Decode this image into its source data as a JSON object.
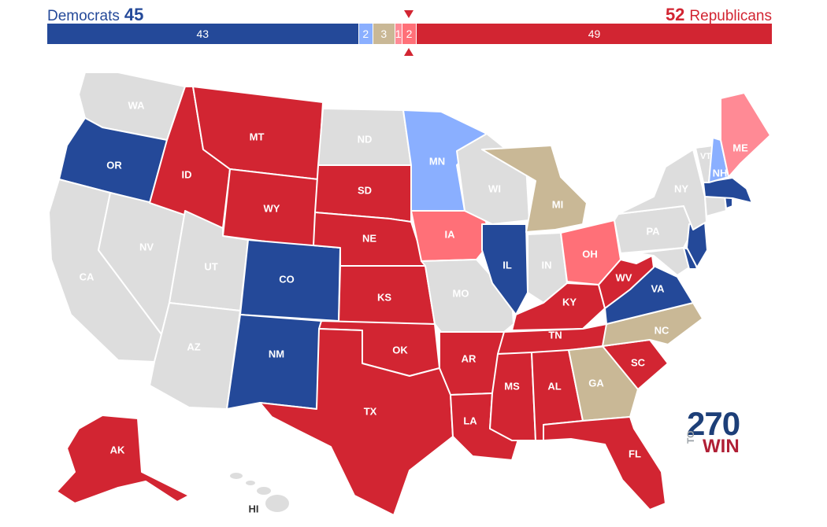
{
  "header": {
    "dem_party": "Democrats",
    "dem_total": "45",
    "rep_total": "52",
    "rep_party": "Republicans"
  },
  "colors": {
    "safe_dem": "#244999",
    "likely_dem": "#8aafff",
    "tossup": "#c9b896",
    "likely_rep": "#ff7078",
    "lean_rep": "#ff8a95",
    "safe_rep": "#d22532",
    "no_race": "#dddddd"
  },
  "balance_bar": [
    {
      "category": "safe_dem",
      "value": 43,
      "label": "43"
    },
    {
      "category": "likely_dem",
      "value": 2,
      "label": "2"
    },
    {
      "category": "tossup",
      "value": 3,
      "label": "3"
    },
    {
      "category": "lean_rep",
      "value": 1,
      "label": "1"
    },
    {
      "category": "likely_rep",
      "value": 2,
      "label": "2"
    },
    {
      "category": "safe_rep",
      "value": 49,
      "label": "49"
    }
  ],
  "states": [
    {
      "abbr": "WA",
      "status": "no_race"
    },
    {
      "abbr": "OR",
      "status": "safe_dem"
    },
    {
      "abbr": "CA",
      "status": "no_race"
    },
    {
      "abbr": "NV",
      "status": "no_race"
    },
    {
      "abbr": "ID",
      "status": "safe_rep"
    },
    {
      "abbr": "MT",
      "status": "safe_rep"
    },
    {
      "abbr": "WY",
      "status": "safe_rep"
    },
    {
      "abbr": "UT",
      "status": "no_race"
    },
    {
      "abbr": "AZ",
      "status": "no_race"
    },
    {
      "abbr": "CO",
      "status": "safe_dem"
    },
    {
      "abbr": "NM",
      "status": "safe_dem"
    },
    {
      "abbr": "ND",
      "status": "no_race"
    },
    {
      "abbr": "SD",
      "status": "safe_rep"
    },
    {
      "abbr": "NE",
      "status": "safe_rep"
    },
    {
      "abbr": "KS",
      "status": "safe_rep"
    },
    {
      "abbr": "OK",
      "status": "safe_rep"
    },
    {
      "abbr": "TX",
      "status": "safe_rep"
    },
    {
      "abbr": "MN",
      "status": "likely_dem"
    },
    {
      "abbr": "IA",
      "status": "likely_rep"
    },
    {
      "abbr": "MO",
      "status": "no_race"
    },
    {
      "abbr": "AR",
      "status": "safe_rep"
    },
    {
      "abbr": "LA",
      "status": "safe_rep"
    },
    {
      "abbr": "WI",
      "status": "no_race"
    },
    {
      "abbr": "IL",
      "status": "safe_dem"
    },
    {
      "abbr": "MI",
      "status": "tossup"
    },
    {
      "abbr": "IN",
      "status": "no_race"
    },
    {
      "abbr": "OH",
      "status": "likely_rep"
    },
    {
      "abbr": "KY",
      "status": "safe_rep"
    },
    {
      "abbr": "TN",
      "status": "safe_rep"
    },
    {
      "abbr": "MS",
      "status": "safe_rep"
    },
    {
      "abbr": "AL",
      "status": "safe_rep"
    },
    {
      "abbr": "GA",
      "status": "tossup"
    },
    {
      "abbr": "FL",
      "status": "safe_rep"
    },
    {
      "abbr": "SC",
      "status": "safe_rep"
    },
    {
      "abbr": "NC",
      "status": "tossup"
    },
    {
      "abbr": "VA",
      "status": "safe_dem"
    },
    {
      "abbr": "WV",
      "status": "safe_rep"
    },
    {
      "abbr": "PA",
      "status": "no_race"
    },
    {
      "abbr": "NY",
      "status": "no_race"
    },
    {
      "abbr": "NJ",
      "status": "safe_dem"
    },
    {
      "abbr": "DE",
      "status": "safe_dem"
    },
    {
      "abbr": "MD",
      "status": "no_race"
    },
    {
      "abbr": "CT",
      "status": "no_race"
    },
    {
      "abbr": "RI",
      "status": "safe_dem"
    },
    {
      "abbr": "MA",
      "status": "safe_dem"
    },
    {
      "abbr": "VT",
      "status": "no_race"
    },
    {
      "abbr": "NH",
      "status": "likely_dem"
    },
    {
      "abbr": "ME",
      "status": "lean_rep"
    },
    {
      "abbr": "AK",
      "status": "safe_rep"
    },
    {
      "abbr": "HI",
      "status": "no_race"
    }
  ],
  "logo": {
    "number": "270",
    "to": "TO",
    "win": "WIN"
  }
}
